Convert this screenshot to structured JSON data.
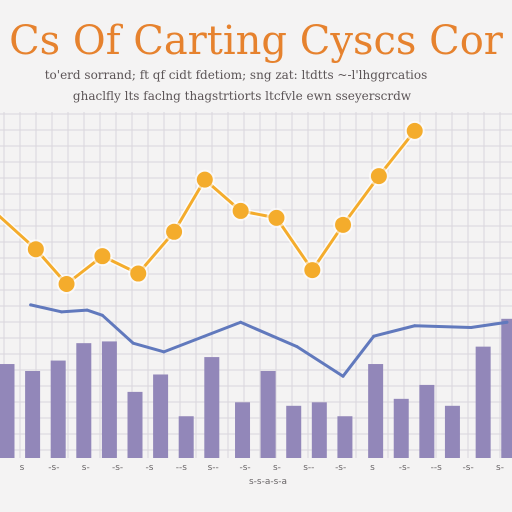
{
  "chart_data": {
    "type": "line",
    "title": "Cs Of Carting Cyscs Cor",
    "subtitle_lines": [
      "to'erd sorrand; ft qf cidt fdetiom; sng zat: ltdtts ~-l'lhggrcatios",
      "ghaclfly lts faclng thagstrtiorts ltcfvle ewn sseyerscrdw"
    ],
    "xlabel": "s-s-a-s-a",
    "tick_labels": [
      "s",
      "-s-",
      "s-",
      "-s-",
      "-s",
      "--s",
      "s--",
      "-s-",
      "s-",
      "s--",
      "-s-",
      "s",
      "-s-",
      "--s",
      "-s-",
      "s-"
    ],
    "ylim": [
      0,
      100
    ],
    "grid": true,
    "colors": {
      "orange": "#f4ac2c",
      "blue": "#6179bd",
      "bar": "#9287b9",
      "title": "#e6822e",
      "grid": "#d9d6dc"
    },
    "series": [
      {
        "type": "line",
        "marker": true,
        "points": [
          [
            -2,
            72
          ],
          [
            7,
            60
          ],
          [
            13,
            50
          ],
          [
            20,
            58
          ],
          [
            27,
            53
          ],
          [
            34,
            65
          ],
          [
            40,
            80
          ],
          [
            47,
            71
          ],
          [
            54,
            69
          ],
          [
            61,
            54
          ],
          [
            67,
            67
          ],
          [
            74,
            81
          ],
          [
            81,
            94
          ]
        ]
      },
      {
        "type": "line",
        "marker": false,
        "points": [
          [
            6,
            44
          ],
          [
            12,
            42
          ],
          [
            17,
            42.5
          ],
          [
            20,
            41
          ],
          [
            26,
            33
          ],
          [
            32,
            30.5
          ],
          [
            47,
            39
          ],
          [
            58,
            32
          ],
          [
            67,
            23.5
          ],
          [
            73,
            35
          ],
          [
            81,
            38
          ],
          [
            92,
            37.5
          ],
          [
            99,
            39
          ]
        ]
      },
      {
        "type": "bar",
        "values": [
          {
            "x": 0,
            "y": 27
          },
          {
            "x": 5,
            "y": 25
          },
          {
            "x": 10,
            "y": 28
          },
          {
            "x": 15,
            "y": 33
          },
          {
            "x": 20,
            "y": 33.5
          },
          {
            "x": 25,
            "y": 19
          },
          {
            "x": 30,
            "y": 24
          },
          {
            "x": 35,
            "y": 12
          },
          {
            "x": 40,
            "y": 29
          },
          {
            "x": 46,
            "y": 16
          },
          {
            "x": 51,
            "y": 25
          },
          {
            "x": 56,
            "y": 15
          },
          {
            "x": 61,
            "y": 16
          },
          {
            "x": 66,
            "y": 12
          },
          {
            "x": 72,
            "y": 27
          },
          {
            "x": 77,
            "y": 17
          },
          {
            "x": 82,
            "y": 21
          },
          {
            "x": 87,
            "y": 15
          },
          {
            "x": 93,
            "y": 32
          },
          {
            "x": 98,
            "y": 40
          }
        ]
      }
    ]
  }
}
